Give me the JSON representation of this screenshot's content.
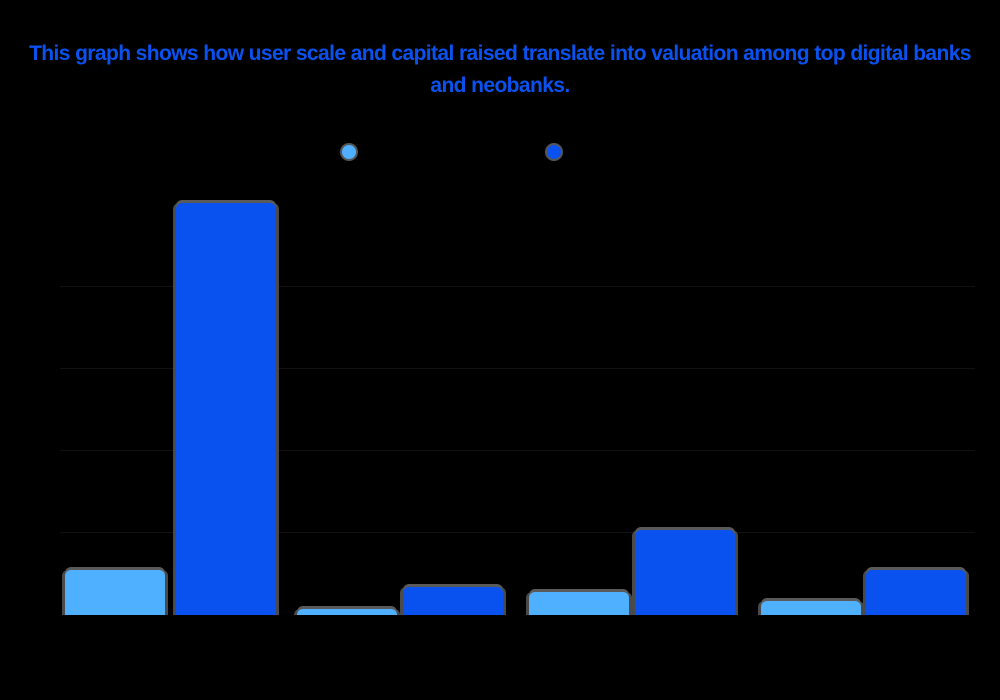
{
  "title": "This graph shows how user scale and capital raised translate into valuation among top digital banks and neobanks.",
  "colors": {
    "title": "#0a52f0",
    "series_light": "#4eb0ff",
    "series_dark": "#0a52f0",
    "background": "#000000"
  },
  "legend": [
    {
      "label": "",
      "color": "#4eb0ff",
      "icon": "circle-swatch-icon"
    },
    {
      "label": "",
      "color": "#0a52f0",
      "icon": "circle-swatch-icon"
    }
  ],
  "chart_data": {
    "type": "bar",
    "title": "This graph shows how user scale and capital raised translate into valuation among top digital banks and neobanks.",
    "categories": [
      "",
      "",
      "",
      ""
    ],
    "series": [
      {
        "name": "",
        "color": "#4eb0ff",
        "values": [
          5.5,
          0.7,
          2.8,
          1.7
        ]
      },
      {
        "name": "",
        "color": "#0a52f0",
        "values": [
          50.2,
          3.4,
          10.4,
          5.5
        ]
      }
    ],
    "xlabel": "",
    "ylabel": "",
    "ylim": [
      0,
      51
    ],
    "gridlines": [
      0,
      10,
      20,
      30,
      40
    ],
    "grid": true,
    "legend_position": "top-center",
    "note": "Legend labels, category labels, axis ticks and data labels are rendered in black on a black background and are not legible; values estimated from bar heights relative to faint gridlines."
  }
}
